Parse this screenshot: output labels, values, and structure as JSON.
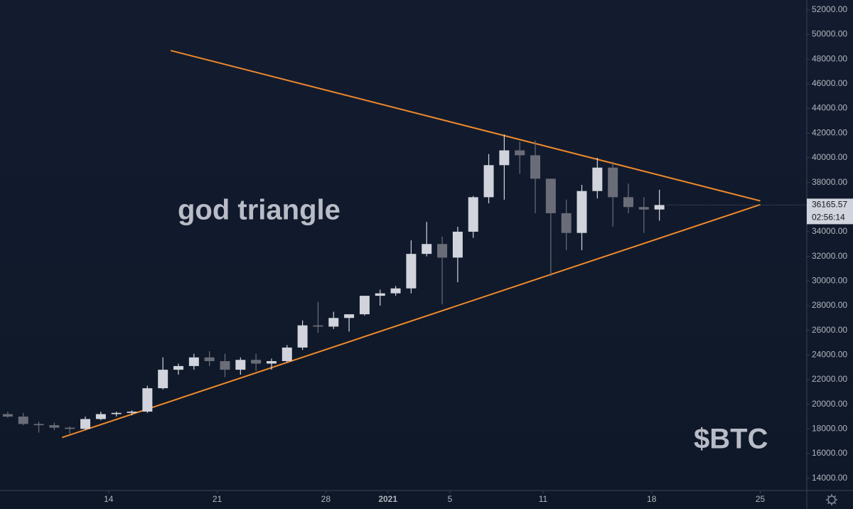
{
  "chart_data": {
    "type": "candlestick",
    "annotation": "god triangle",
    "watermark": "$BTC",
    "x": [
      "2020-12-07",
      "2020-12-08",
      "2020-12-09",
      "2020-12-10",
      "2020-12-11",
      "2020-12-12",
      "2020-12-13",
      "2020-12-14",
      "2020-12-15",
      "2020-12-16",
      "2020-12-17",
      "2020-12-18",
      "2020-12-19",
      "2020-12-20",
      "2020-12-21",
      "2020-12-22",
      "2020-12-23",
      "2020-12-24",
      "2020-12-25",
      "2020-12-26",
      "2020-12-27",
      "2020-12-28",
      "2020-12-29",
      "2020-12-30",
      "2020-12-31",
      "2021-01-01",
      "2021-01-02",
      "2021-01-03",
      "2021-01-04",
      "2021-01-05",
      "2021-01-06",
      "2021-01-07",
      "2021-01-08",
      "2021-01-09",
      "2021-01-10",
      "2021-01-11",
      "2021-01-12",
      "2021-01-13",
      "2021-01-14",
      "2021-01-15",
      "2021-01-16",
      "2021-01-17",
      "2021-01-18"
    ],
    "open": [
      19200,
      19000,
      18400,
      18300,
      18100,
      18000,
      18800,
      19200,
      19300,
      19400,
      21300,
      22800,
      23100,
      23800,
      23500,
      22800,
      23600,
      23300,
      23500,
      24600,
      26400,
      26300,
      27000,
      27300,
      28800,
      29000,
      29400,
      32200,
      33000,
      31900,
      34000,
      36800,
      39400,
      40600,
      40200,
      38300,
      35500,
      33900,
      37300,
      39200,
      36800,
      36000,
      35800
    ],
    "high": [
      19400,
      19300,
      18600,
      18500,
      18200,
      19000,
      19400,
      19400,
      19500,
      21500,
      23800,
      23300,
      24100,
      24300,
      24100,
      23800,
      24100,
      23700,
      24800,
      26800,
      28300,
      27500,
      27300,
      28800,
      29300,
      29600,
      33300,
      34800,
      33600,
      34400,
      36900,
      40300,
      41900,
      41300,
      41400,
      38300,
      36600,
      37800,
      40000,
      39700,
      37900,
      36800,
      37400
    ],
    "low": [
      18900,
      18300,
      17700,
      17900,
      17600,
      17900,
      18700,
      19000,
      19100,
      19300,
      21200,
      22400,
      22800,
      23100,
      22200,
      22400,
      22700,
      22800,
      23400,
      24400,
      25800,
      26100,
      25900,
      27200,
      28000,
      28800,
      29000,
      32000,
      28100,
      29900,
      33500,
      36300,
      36600,
      38700,
      35500,
      30400,
      32500,
      32500,
      36700,
      34400,
      35500,
      33900,
      34900
    ],
    "close": [
      19000,
      18400,
      18300,
      18100,
      18000,
      18800,
      19200,
      19300,
      19400,
      21300,
      22800,
      23100,
      23800,
      23500,
      22800,
      23600,
      23300,
      23500,
      24600,
      26400,
      26300,
      27000,
      27300,
      28800,
      29000,
      29400,
      32200,
      33000,
      31900,
      34000,
      36800,
      39400,
      40600,
      40200,
      38300,
      35500,
      33900,
      37300,
      39200,
      36800,
      36000,
      35800,
      36165.57
    ],
    "up_color": "#d1d4dc",
    "down_color": "#6a6d78",
    "last_price": 36165.57,
    "countdown": "02:56:14",
    "trendlines": [
      {
        "color": "#f0892b",
        "x": [
          "2020-12-18",
          "2021-01-25"
        ],
        "y": [
          48700,
          36500
        ]
      },
      {
        "color": "#f0892b",
        "x": [
          "2020-12-11",
          "2021-01-25"
        ],
        "y": [
          17300,
          36200
        ]
      }
    ],
    "xlim": [
      "2020-12-07",
      "2021-01-28"
    ],
    "xticks": [
      {
        "value": "2020-12-14",
        "label": "14"
      },
      {
        "value": "2020-12-21",
        "label": "21"
      },
      {
        "value": "2020-12-28",
        "label": "28"
      },
      {
        "value": "2021-01-01",
        "label": "2021"
      },
      {
        "value": "2021-01-05",
        "label": "5"
      },
      {
        "value": "2021-01-11",
        "label": "11"
      },
      {
        "value": "2021-01-18",
        "label": "18"
      },
      {
        "value": "2021-01-25",
        "label": "25"
      }
    ],
    "ylim": [
      13000,
      52800
    ],
    "yticks": [
      {
        "value": 14000,
        "label": "14000.00"
      },
      {
        "value": 16000,
        "label": "16000.00"
      },
      {
        "value": 18000,
        "label": "18000.00"
      },
      {
        "value": 20000,
        "label": "20000.00"
      },
      {
        "value": 22000,
        "label": "22000.00"
      },
      {
        "value": 24000,
        "label": "24000.00"
      },
      {
        "value": 26000,
        "label": "26000.00"
      },
      {
        "value": 28000,
        "label": "28000.00"
      },
      {
        "value": 30000,
        "label": "30000.00"
      },
      {
        "value": 32000,
        "label": "32000.00"
      },
      {
        "value": 34000,
        "label": "34000.00"
      },
      {
        "value": 36000,
        "label": "36000.00"
      },
      {
        "value": 38000,
        "label": "38000.00"
      },
      {
        "value": 40000,
        "label": "40000.00"
      },
      {
        "value": 42000,
        "label": "42000.00"
      },
      {
        "value": 44000,
        "label": "44000.00"
      },
      {
        "value": 46000,
        "label": "46000.00"
      },
      {
        "value": 48000,
        "label": "48000.00"
      },
      {
        "value": 50000,
        "label": "50000.00"
      },
      {
        "value": 52000,
        "label": "52000.00"
      }
    ]
  }
}
